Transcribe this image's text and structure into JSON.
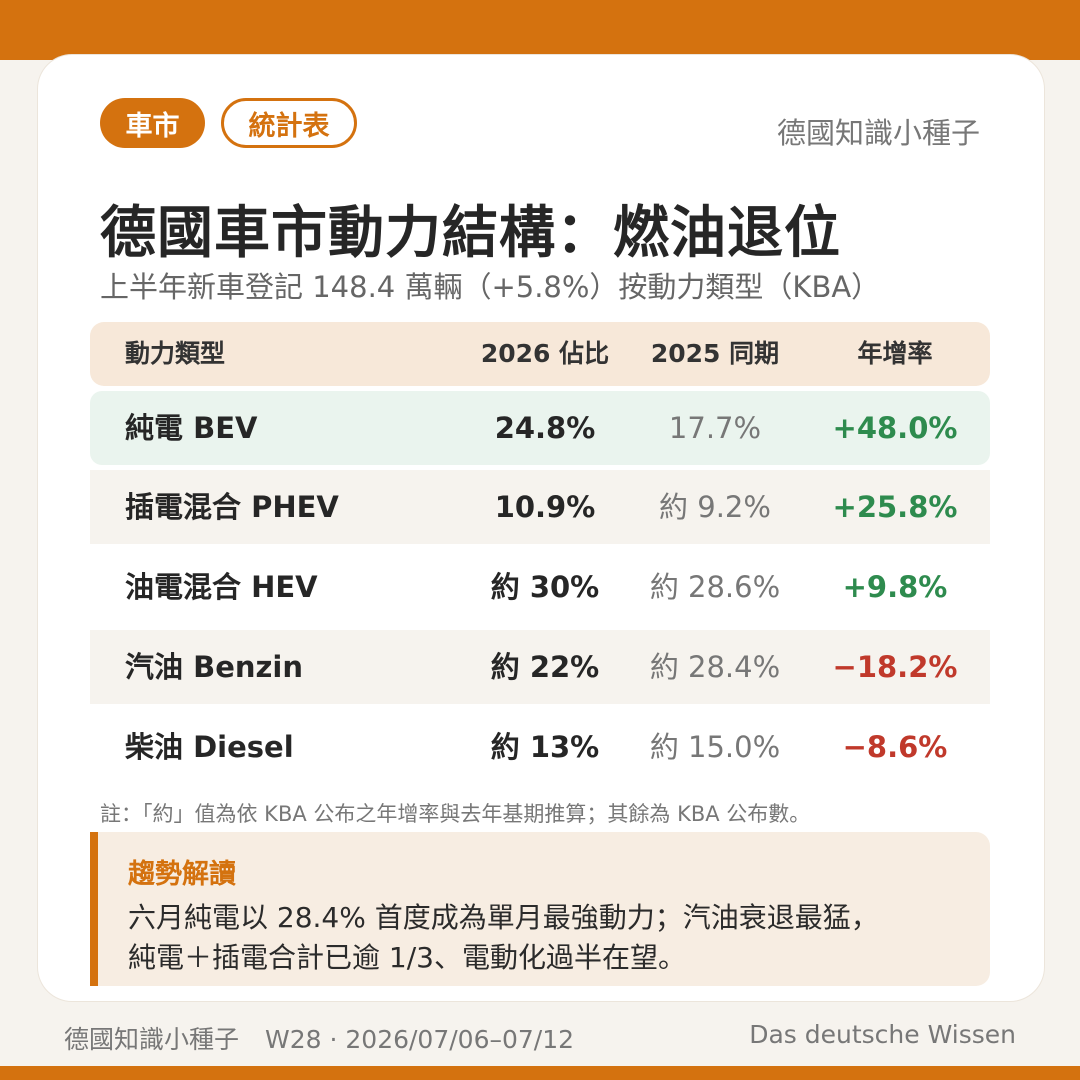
{
  "header": {
    "tags": [
      "車市",
      "統計表"
    ],
    "brand": "德國知識小種子"
  },
  "title": "德國車市動力結構：燃油退位",
  "subtitle": "上半年新車登記 148.4 萬輛（+5.8%）按動力類型（KBA）",
  "table": {
    "columns": [
      "動力類型",
      "2026 佔比",
      "2025 同期",
      "年增率"
    ],
    "rows": [
      {
        "type": "純電 BEV",
        "share_2026": "24.8%",
        "share_2025": "17.7%",
        "yoy": "+48.0%"
      },
      {
        "type": "插電混合 PHEV",
        "share_2026": "10.9%",
        "share_2025": "約 9.2%",
        "yoy": "+25.8%"
      },
      {
        "type": "油電混合 HEV",
        "share_2026": "約 30%",
        "share_2025": "約 28.6%",
        "yoy": "+9.8%"
      },
      {
        "type": "汽油 Benzin",
        "share_2026": "約 22%",
        "share_2025": "約 28.4%",
        "yoy": "−18.2%"
      },
      {
        "type": "柴油 Diesel",
        "share_2026": "約 13%",
        "share_2025": "約 15.0%",
        "yoy": "−8.6%"
      }
    ]
  },
  "note": "註：「約」值為依 KBA 公布之年增率與去年基期推算；其餘為 KBA 公布數。",
  "trend": {
    "title": "趨勢解讀",
    "lines": [
      "六月純電以 28.4% 首度成為單月最強動力；汽油衰退最猛，",
      "純電＋插電合計已逾 1/3、電動化過半在望。"
    ]
  },
  "footer": {
    "brand": "德國知識小種子",
    "week": "W28 · 2026/07/06–07/12",
    "tagline": "Das deutsche Wissen"
  },
  "colors": {
    "accent": "#d4720f",
    "positive": "#2e8b4e",
    "negative": "#c0392b"
  }
}
